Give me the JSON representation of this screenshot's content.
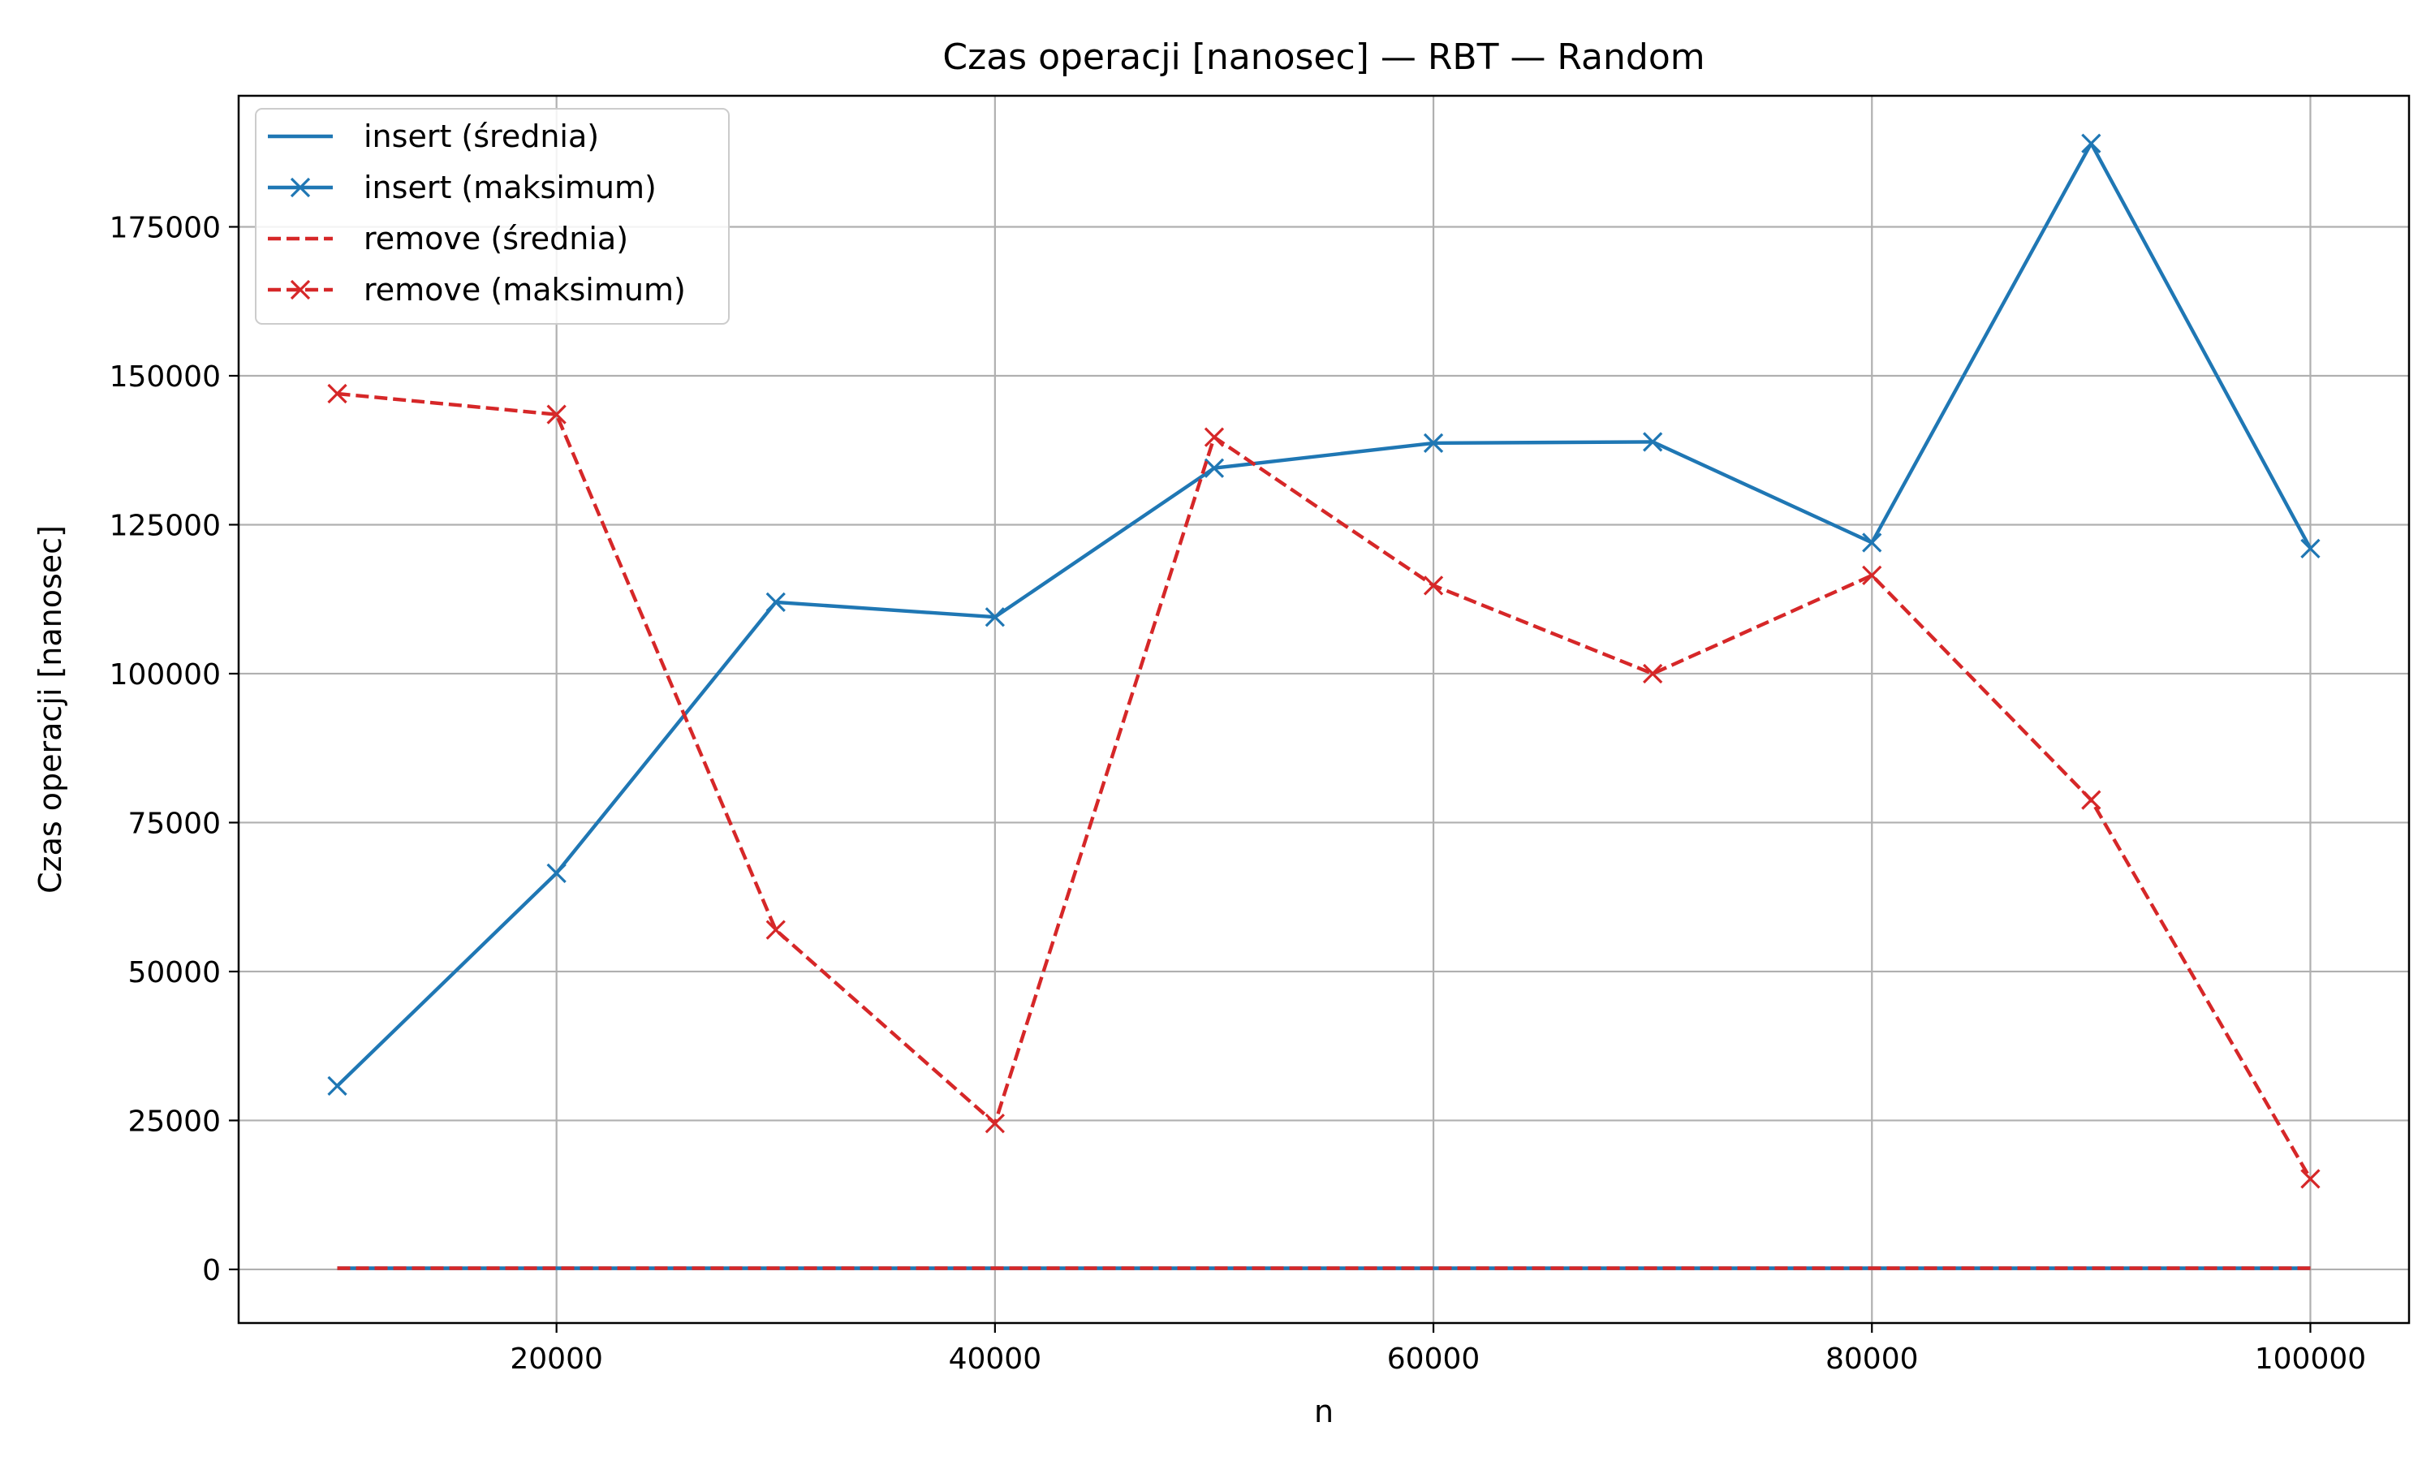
{
  "chart_data": {
    "type": "line",
    "title": "Czas operacji [nanosec] — RBT — Random",
    "xlabel": "n",
    "ylabel": "Czas operacji [nanosec]",
    "xlim": [
      5500,
      104500
    ],
    "ylim": [
      -9000,
      197000
    ],
    "x_ticks": [
      20000,
      40000,
      60000,
      80000,
      100000
    ],
    "y_ticks": [
      0,
      25000,
      50000,
      75000,
      100000,
      125000,
      150000,
      175000
    ],
    "grid": true,
    "legend_position": "top-left",
    "x": [
      10000,
      20000,
      30000,
      40000,
      50000,
      60000,
      70000,
      80000,
      90000,
      100000
    ],
    "series": [
      {
        "name": "insert (średnia)",
        "color": "#1f77b4",
        "dash": "solid",
        "marker": "none",
        "values": [
          200,
          200,
          200,
          200,
          200,
          200,
          200,
          200,
          200,
          200
        ]
      },
      {
        "name": "insert (maksimum)",
        "color": "#1f77b4",
        "dash": "solid",
        "marker": "x",
        "values": [
          30800,
          66500,
          112000,
          109500,
          134500,
          138700,
          138900,
          122000,
          189000,
          121000
        ]
      },
      {
        "name": "remove (średnia)",
        "color": "#d62728",
        "dash": "dashed",
        "marker": "none",
        "values": [
          200,
          200,
          200,
          200,
          200,
          200,
          200,
          200,
          200,
          200
        ]
      },
      {
        "name": "remove (maksimum)",
        "color": "#d62728",
        "dash": "dashed",
        "marker": "x",
        "values": [
          147000,
          143500,
          57000,
          24500,
          139700,
          114800,
          100000,
          116500,
          78800,
          15200
        ]
      }
    ]
  }
}
